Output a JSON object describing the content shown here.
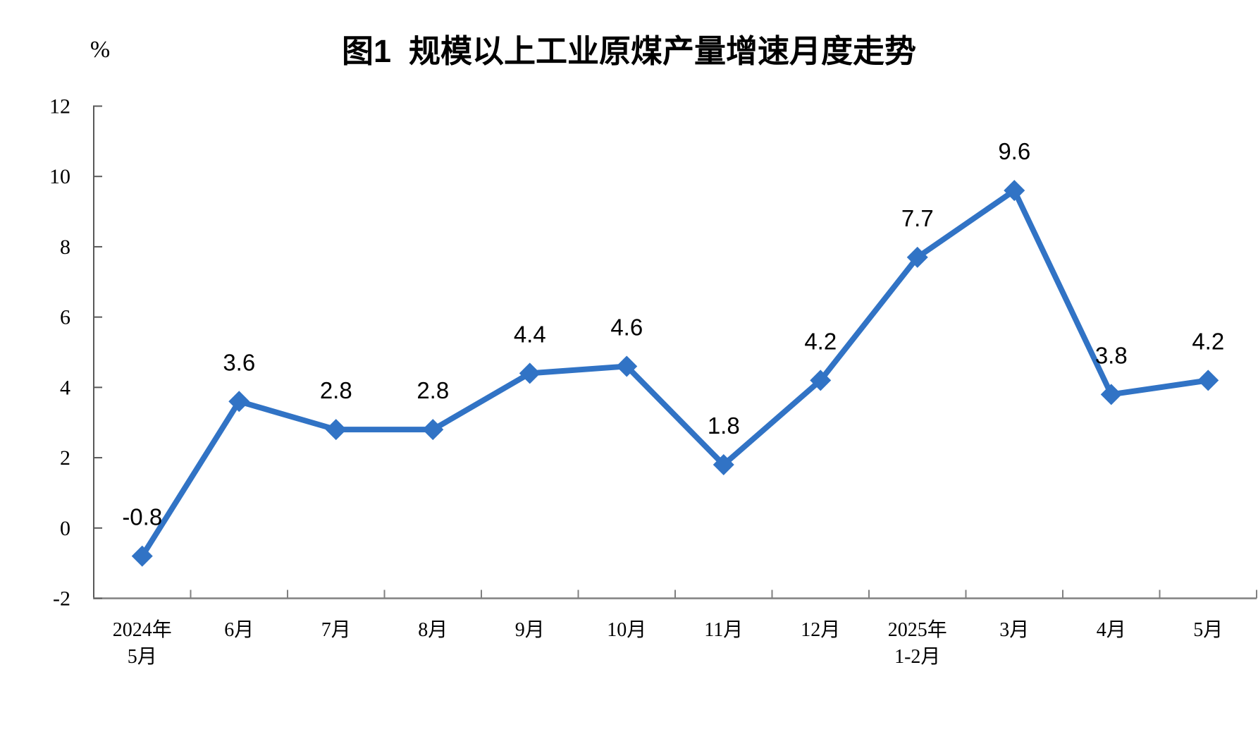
{
  "title": "图1  规模以上工业原煤产量增速月度走势",
  "y_axis": {
    "unit": "%",
    "min": -2,
    "max": 12,
    "tick_step": 2,
    "tick_labels": [
      "-2",
      "0",
      "2",
      "4",
      "6",
      "8",
      "10",
      "12"
    ]
  },
  "chart_data": {
    "type": "line",
    "title": "图1  规模以上工业原煤产量增速月度走势",
    "categories": [
      "2024年5月",
      "6月",
      "7月",
      "8月",
      "9月",
      "10月",
      "11月",
      "12月",
      "2025年1-2月",
      "3月",
      "4月",
      "5月"
    ],
    "category_label_lines": [
      [
        "2024年",
        "5月"
      ],
      [
        "6月"
      ],
      [
        "7月"
      ],
      [
        "8月"
      ],
      [
        "9月"
      ],
      [
        "10月"
      ],
      [
        "11月"
      ],
      [
        "12月"
      ],
      [
        "2025年",
        "1-2月"
      ],
      [
        "3月"
      ],
      [
        "4月"
      ],
      [
        "5月"
      ]
    ],
    "values": [
      -0.8,
      3.6,
      2.8,
      2.8,
      4.4,
      4.6,
      1.8,
      4.2,
      7.7,
      9.6,
      3.8,
      4.2
    ],
    "data_labels": [
      "-0.8",
      "3.6",
      "2.8",
      "2.8",
      "4.4",
      "4.6",
      "1.8",
      "4.2",
      "7.7",
      "9.6",
      "3.8",
      "4.2"
    ],
    "xlabel": "",
    "ylabel": "%",
    "ylim": [
      -2,
      12
    ],
    "grid": false,
    "legend": false,
    "marker": "diamond",
    "line_color": "#3173C5",
    "data_label_color": "#000000",
    "x_axis_color": "#808080",
    "y_axis_color": "#595959"
  }
}
